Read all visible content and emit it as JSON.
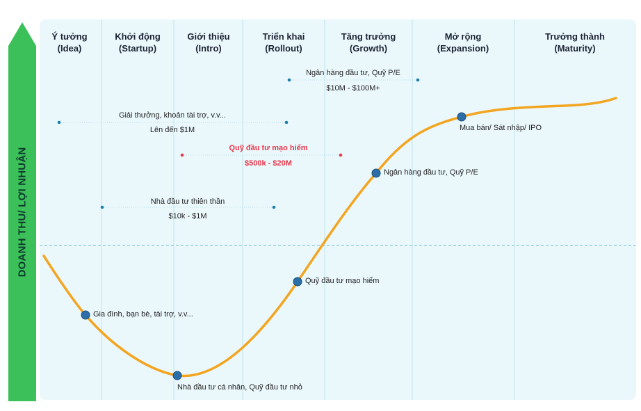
{
  "y_axis_label": "DOANH THU/ LỢI NHUẬN",
  "colors": {
    "axis_green": "#3cc15a",
    "curve": "#f3a51f",
    "panel": "#eaf8fc",
    "dot": "#2c6ea8",
    "red_text": "#e8374a",
    "teal_dot": "#1a7fa8"
  },
  "stages": [
    {
      "name": "Ý tưởng",
      "en": "(Idea)"
    },
    {
      "name": "Khởi động",
      "en": "(Startup)"
    },
    {
      "name": "Giới thiệu",
      "en": "(Intro)"
    },
    {
      "name": "Triển khai",
      "en": "(Rollout)"
    },
    {
      "name": "Tăng trưởng",
      "en": "(Growth)"
    },
    {
      "name": "Mở rộng",
      "en": "(Expansion)"
    },
    {
      "name": "Trưởng thành",
      "en": "(Maturity)"
    }
  ],
  "funding_ranges": [
    {
      "label": "Ngân hàng đầu tư, Quỹ P/E",
      "amount": "$10M - $100M+",
      "highlight": false
    },
    {
      "label": "Giải thưởng, khoản tài trợ, v.v...",
      "amount": "Lên đến $1M",
      "highlight": false
    },
    {
      "label": "Quỹ đầu tư mạo hiểm",
      "amount": "$500k - $20M",
      "highlight": true
    },
    {
      "label": "Nhà đầu tư thiên thần",
      "amount": "$10k - $1M",
      "highlight": false
    }
  ],
  "curve_points": [
    {
      "label": "Gia đình, bạn bè, tài trợ, v.v..."
    },
    {
      "label": "Nhà đầu tư cá nhân, Quỹ đầu tư nhỏ"
    },
    {
      "label": "Quỹ đầu tư mạo hiểm"
    },
    {
      "label": "Ngân hàng đầu tư, Quỹ P/E"
    },
    {
      "label": "Mua bán/ Sát nhập/ IPO"
    }
  ]
}
